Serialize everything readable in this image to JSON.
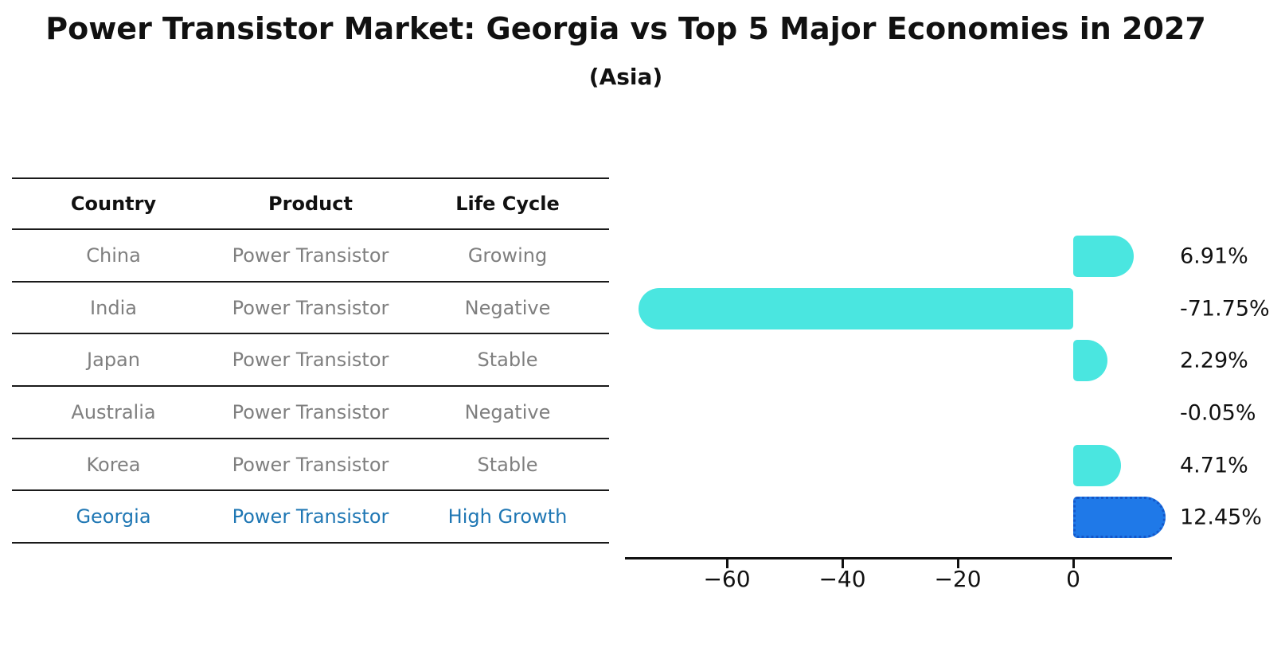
{
  "title": "Power Transistor Market: Georgia vs Top 5 Major Economies in 2027",
  "subtitle": "(Asia)",
  "colors": {
    "bar_default": "#4ae6e0",
    "bar_highlight": "#1f79e8",
    "bar_highlight_border": "#1457c9",
    "highlight_text": "#1f77b4",
    "table_text": "#7f7f7f",
    "header_text": "#111111",
    "rule_line": "#1a1a1a"
  },
  "table": {
    "headers": [
      "Country",
      "Product",
      "Life Cycle"
    ],
    "rows": [
      {
        "country": "China",
        "product": "Power Transistor",
        "life_cycle": "Growing",
        "highlight": false
      },
      {
        "country": "India",
        "product": "Power Transistor",
        "life_cycle": "Negative",
        "highlight": false
      },
      {
        "country": "Japan",
        "product": "Power Transistor",
        "life_cycle": "Stable",
        "highlight": false
      },
      {
        "country": "Australia",
        "product": "Power Transistor",
        "life_cycle": "Negative",
        "highlight": false
      },
      {
        "country": "Korea",
        "product": "Power Transistor",
        "life_cycle": "Stable",
        "highlight": false
      },
      {
        "country": "Georgia",
        "product": "Power Transistor",
        "life_cycle": "High Growth",
        "highlight": true
      }
    ]
  },
  "chart_data": {
    "type": "bar",
    "orientation": "horizontal",
    "categories": [
      "China",
      "India",
      "Japan",
      "Australia",
      "Korea",
      "Georgia"
    ],
    "values": [
      6.91,
      -71.75,
      2.29,
      -0.05,
      4.71,
      12.45
    ],
    "labels": [
      "6.91%",
      "-71.75%",
      "2.29%",
      "-0.05%",
      "4.71%",
      "12.45%"
    ],
    "unit": "%",
    "x_ticks": [
      "−60",
      "−40",
      "−20",
      "0"
    ],
    "x_tick_values": [
      -60,
      -40,
      -20,
      0
    ],
    "xlim": [
      -77.5,
      17
    ],
    "grid": false,
    "legend": "none",
    "highlight_index": 5,
    "highlight_category": "Georgia"
  }
}
